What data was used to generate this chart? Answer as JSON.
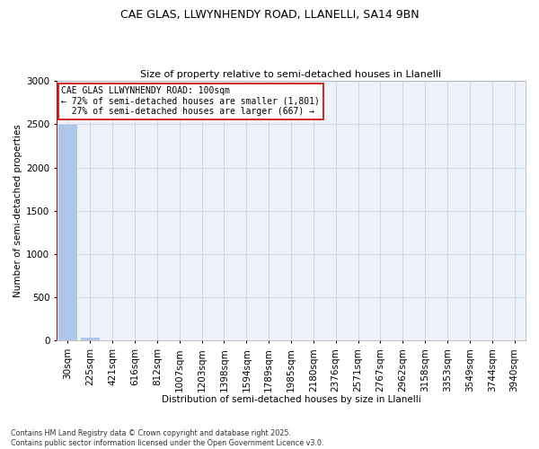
{
  "title_line1": "CAE GLAS, LLWYNHENDY ROAD, LLANELLI, SA14 9BN",
  "title_line2": "Size of property relative to semi-detached houses in Llanelli",
  "xlabel": "Distribution of semi-detached houses by size in Llanelli",
  "ylabel": "Number of semi-detached properties",
  "categories": [
    "30sqm",
    "225sqm",
    "421sqm",
    "616sqm",
    "812sqm",
    "1007sqm",
    "1203sqm",
    "1398sqm",
    "1594sqm",
    "1789sqm",
    "1985sqm",
    "2180sqm",
    "2376sqm",
    "2571sqm",
    "2767sqm",
    "2962sqm",
    "3158sqm",
    "3353sqm",
    "3549sqm",
    "3744sqm",
    "3940sqm"
  ],
  "values": [
    2490,
    35,
    5,
    2,
    1,
    1,
    0,
    0,
    0,
    0,
    1,
    0,
    0,
    0,
    0,
    0,
    0,
    0,
    0,
    0,
    0
  ],
  "bar_color": "#aec6e8",
  "property_bar_color": "#cc0000",
  "ylim": [
    0,
    3000
  ],
  "yticks": [
    0,
    500,
    1000,
    1500,
    2000,
    2500,
    3000
  ],
  "annotation_line1": "CAE GLAS LLWYNHENDY ROAD: 100sqm",
  "annotation_line2": "← 72% of semi-detached houses are smaller (1,801)",
  "annotation_line3": "  27% of semi-detached houses are larger (667) →",
  "footnote": "Contains HM Land Registry data © Crown copyright and database right 2025.\nContains public sector information licensed under the Open Government Licence v3.0.",
  "grid_color": "#d0d8e8",
  "background_color": "#eef2fa"
}
